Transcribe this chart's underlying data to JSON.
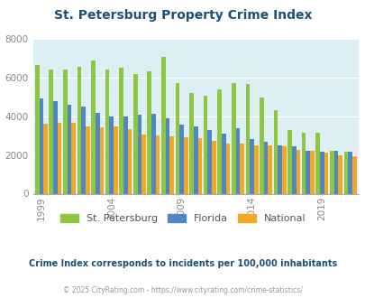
{
  "title": "St. Petersburg Property Crime Index",
  "subtitle": "Crime Index corresponds to incidents per 100,000 inhabitants",
  "copyright": "© 2025 CityRating.com - https://www.cityrating.com/crime-statistics/",
  "years": [
    1999,
    2000,
    2001,
    2002,
    2003,
    2004,
    2005,
    2006,
    2007,
    2008,
    2009,
    2010,
    2011,
    2012,
    2013,
    2014,
    2015,
    2016,
    2017,
    2018,
    2019,
    2020,
    2021
  ],
  "st_pete": [
    6650,
    6400,
    6400,
    6550,
    6870,
    6430,
    6500,
    6170,
    6340,
    7060,
    5700,
    5200,
    5050,
    5380,
    5720,
    5650,
    4980,
    4320,
    3290,
    3150,
    3150,
    2210,
    2150
  ],
  "florida": [
    4920,
    4780,
    4600,
    4500,
    4170,
    4000,
    3990,
    4100,
    4120,
    3870,
    3560,
    3490,
    3280,
    3080,
    3380,
    2840,
    2680,
    2480,
    2450,
    2230,
    2190,
    2210,
    2150
  ],
  "national": [
    3600,
    3670,
    3640,
    3490,
    3430,
    3470,
    3320,
    3050,
    2990,
    2960,
    2930,
    2890,
    2730,
    2590,
    2590,
    2480,
    2500,
    2460,
    2250,
    2200,
    2110,
    1960,
    1950
  ],
  "colors": {
    "st_pete": "#8dc63f",
    "florida": "#4f87c5",
    "national": "#f5a623"
  },
  "bg_color": "#ddeef4",
  "ylim": [
    0,
    8000
  ],
  "yticks": [
    0,
    2000,
    4000,
    6000,
    8000
  ],
  "xtick_years": [
    1999,
    2004,
    2009,
    2014,
    2019
  ],
  "title_color": "#1a5276",
  "subtitle_color": "#1a5276",
  "copyright_color": "#999999",
  "legend_labels": [
    "St. Petersburg",
    "Florida",
    "National"
  ]
}
